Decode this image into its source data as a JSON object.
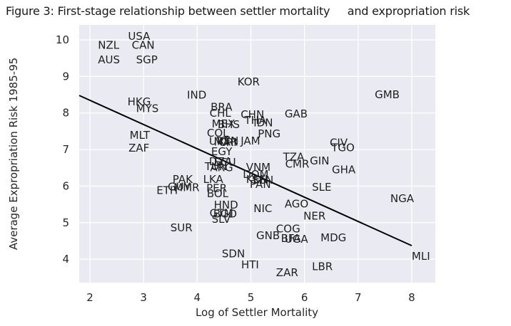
{
  "title": "Figure 3: First-stage relationship between settler mortality     and expropriation risk",
  "chart_data": {
    "type": "scatter",
    "title": "Figure 3: First-stage relationship between settler mortality and expropriation risk",
    "xlabel": "Log of Settler Mortality",
    "ylabel": "Average Expropriation Risk 1985-95",
    "xlim": [
      1.8,
      8.44
    ],
    "ylim": [
      3.36,
      10.41
    ],
    "x_ticks": [
      2,
      3,
      4,
      5,
      6,
      7,
      8
    ],
    "y_ticks": [
      4,
      5,
      6,
      7,
      8,
      9,
      10
    ],
    "grid": true,
    "legend": "none",
    "marker": "country-code-text",
    "regression_line": {
      "x1": 1.8,
      "y1": 8.48,
      "x2": 8.0,
      "y2": 4.37
    },
    "colors": {
      "plot_bg": "#eaeaf2",
      "grid": "#ffffff",
      "text": "#262626",
      "label": "#1f1f1f",
      "line": "#000000",
      "fig_bg": "#ffffff"
    },
    "points": [
      {
        "label": "USA",
        "x": 2.71,
        "y": 10.0
      },
      {
        "label": "NZL",
        "x": 2.15,
        "y": 9.76
      },
      {
        "label": "CAN",
        "x": 2.78,
        "y": 9.76
      },
      {
        "label": "AUS",
        "x": 2.15,
        "y": 9.36
      },
      {
        "label": "SGP",
        "x": 2.86,
        "y": 9.36
      },
      {
        "label": "KOR",
        "x": 4.75,
        "y": 8.75
      },
      {
        "label": "GMB",
        "x": 7.31,
        "y": 8.4
      },
      {
        "label": "IND",
        "x": 3.81,
        "y": 8.39
      },
      {
        "label": "HKG",
        "x": 2.7,
        "y": 8.21
      },
      {
        "label": "MYS",
        "x": 2.86,
        "y": 8.02
      },
      {
        "label": "BRA",
        "x": 4.25,
        "y": 8.06
      },
      {
        "label": "CHL",
        "x": 4.23,
        "y": 7.9
      },
      {
        "label": "CHN",
        "x": 4.81,
        "y": 7.86
      },
      {
        "label": "GAB",
        "x": 5.63,
        "y": 7.88
      },
      {
        "label": "THA",
        "x": 4.88,
        "y": 7.7
      },
      {
        "label": "IDN",
        "x": 5.05,
        "y": 7.63
      },
      {
        "label": "MEX",
        "x": 4.27,
        "y": 7.61
      },
      {
        "label": "BHS",
        "x": 4.38,
        "y": 7.59
      },
      {
        "label": "COL",
        "x": 4.18,
        "y": 7.35
      },
      {
        "label": "PNG",
        "x": 5.13,
        "y": 7.33
      },
      {
        "label": "MLT",
        "x": 2.74,
        "y": 7.29
      },
      {
        "label": "URY",
        "x": 4.22,
        "y": 7.13
      },
      {
        "label": "MAR",
        "x": 4.31,
        "y": 7.11
      },
      {
        "label": "VEN",
        "x": 4.36,
        "y": 7.14
      },
      {
        "label": "CRI",
        "x": 4.4,
        "y": 7.1
      },
      {
        "label": "JAM",
        "x": 4.81,
        "y": 7.14
      },
      {
        "label": "CIV",
        "x": 6.47,
        "y": 7.09
      },
      {
        "label": "TGO",
        "x": 6.5,
        "y": 6.95
      },
      {
        "label": "ZAF",
        "x": 2.72,
        "y": 6.94
      },
      {
        "label": "EGY",
        "x": 4.26,
        "y": 6.85
      },
      {
        "label": "TZA",
        "x": 5.6,
        "y": 6.7
      },
      {
        "label": "GIN",
        "x": 6.1,
        "y": 6.59
      },
      {
        "label": "DZA",
        "x": 4.22,
        "y": 6.57
      },
      {
        "label": "ECU",
        "x": 4.31,
        "y": 6.55
      },
      {
        "label": "CMR",
        "x": 5.64,
        "y": 6.51
      },
      {
        "label": "GHA",
        "x": 6.51,
        "y": 6.35
      },
      {
        "label": "TUN",
        "x": 4.14,
        "y": 6.44
      },
      {
        "label": "ARG",
        "x": 4.24,
        "y": 6.41
      },
      {
        "label": "VNM",
        "x": 4.91,
        "y": 6.42
      },
      {
        "label": "DOM",
        "x": 4.85,
        "y": 6.22
      },
      {
        "label": "KEN",
        "x": 4.91,
        "y": 6.09
      },
      {
        "label": "SEN",
        "x": 5.02,
        "y": 6.07
      },
      {
        "label": "PAK",
        "x": 3.54,
        "y": 6.09
      },
      {
        "label": "LKA",
        "x": 4.11,
        "y": 6.09
      },
      {
        "label": "PAN",
        "x": 4.98,
        "y": 5.95
      },
      {
        "label": "GUY",
        "x": 3.45,
        "y": 5.88
      },
      {
        "label": "MMR",
        "x": 3.56,
        "y": 5.86
      },
      {
        "label": "SLE",
        "x": 6.14,
        "y": 5.87
      },
      {
        "label": "ETH",
        "x": 3.24,
        "y": 5.78
      },
      {
        "label": "PER",
        "x": 4.17,
        "y": 5.84
      },
      {
        "label": "BOL",
        "x": 4.18,
        "y": 5.7
      },
      {
        "label": "NGA",
        "x": 7.6,
        "y": 5.56
      },
      {
        "label": "AGO",
        "x": 5.63,
        "y": 5.41
      },
      {
        "label": "HND",
        "x": 4.31,
        "y": 5.39
      },
      {
        "label": "NIC",
        "x": 5.05,
        "y": 5.29
      },
      {
        "label": "GTM",
        "x": 4.23,
        "y": 5.16
      },
      {
        "label": "BGD",
        "x": 4.3,
        "y": 5.14
      },
      {
        "label": "NER",
        "x": 5.98,
        "y": 5.08
      },
      {
        "label": "SLV",
        "x": 4.27,
        "y": 5.0
      },
      {
        "label": "SUR",
        "x": 3.5,
        "y": 4.76
      },
      {
        "label": "COG",
        "x": 5.47,
        "y": 4.73
      },
      {
        "label": "GNB",
        "x": 5.1,
        "y": 4.55
      },
      {
        "label": "BFA",
        "x": 5.56,
        "y": 4.47
      },
      {
        "label": "UGA",
        "x": 5.63,
        "y": 4.45
      },
      {
        "label": "MDG",
        "x": 6.3,
        "y": 4.49
      },
      {
        "label": "SDN",
        "x": 4.46,
        "y": 4.05
      },
      {
        "label": "MLI",
        "x": 8.0,
        "y": 3.98
      },
      {
        "label": "HTI",
        "x": 4.82,
        "y": 3.75
      },
      {
        "label": "LBR",
        "x": 6.14,
        "y": 3.7
      },
      {
        "label": "ZAR",
        "x": 5.47,
        "y": 3.54
      }
    ]
  }
}
